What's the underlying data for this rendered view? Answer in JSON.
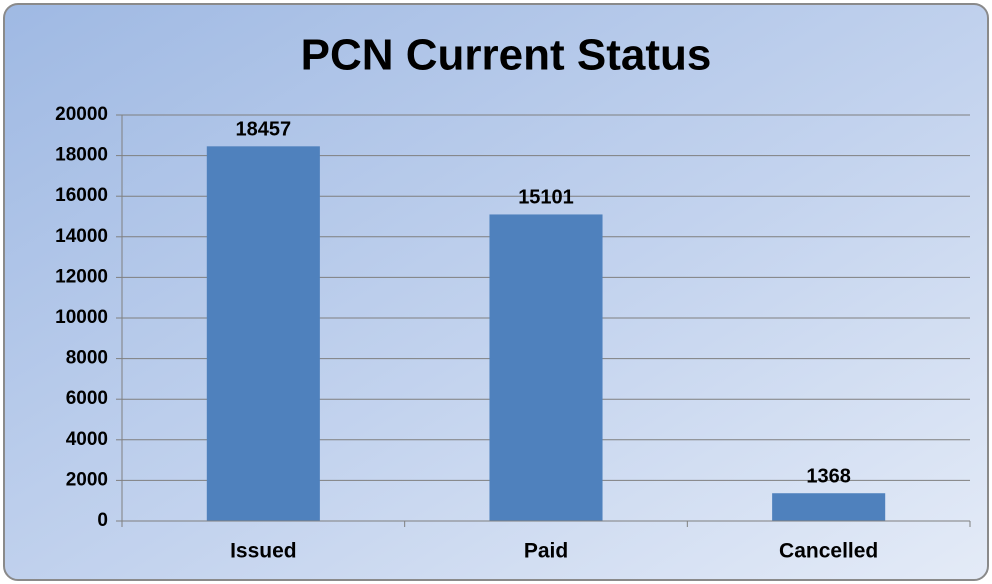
{
  "chart_data": {
    "type": "bar",
    "title": "PCN Current Status",
    "categories": [
      "Issued",
      "Paid",
      "Cancelled"
    ],
    "values": [
      18457,
      15101,
      1368
    ],
    "color": "#4f81bd",
    "ylim": [
      0,
      20000
    ],
    "yticks": [
      0,
      2000,
      4000,
      6000,
      8000,
      10000,
      12000,
      14000,
      16000,
      18000,
      20000
    ],
    "grid": true
  }
}
